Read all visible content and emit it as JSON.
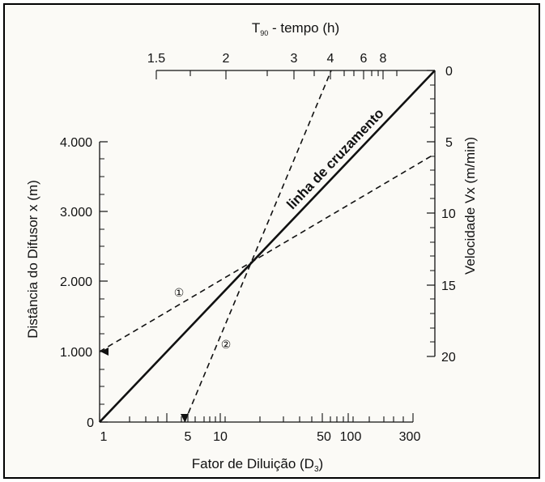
{
  "diagram": {
    "axes": {
      "left": {
        "title": "Distância do Difusor x (m)",
        "ticks": [
          "4.000",
          "3.000",
          "2.000",
          "1.000",
          "0"
        ]
      },
      "right": {
        "title": "Velocidade Vx (m/min)",
        "ticks": [
          "0",
          "5",
          "10",
          "15",
          "20"
        ]
      },
      "top": {
        "title_main": "T",
        "title_sub": "90",
        "title_rest": " - tempo (h)",
        "ticks": [
          "1.5",
          "2",
          "3",
          "4",
          "6",
          "8"
        ]
      },
      "bottom": {
        "title_main": "Fator de Diluição (D",
        "title_sub": "3",
        "title_rest": ")",
        "ticks": [
          "1",
          "5",
          "10",
          "50",
          "100",
          "300"
        ]
      }
    },
    "labels": {
      "crossing_line": "linha de cruzamento",
      "marker_1": "①",
      "marker_2": "②"
    },
    "colors": {
      "ink": "#111111",
      "background": "#fbfaf6"
    }
  }
}
